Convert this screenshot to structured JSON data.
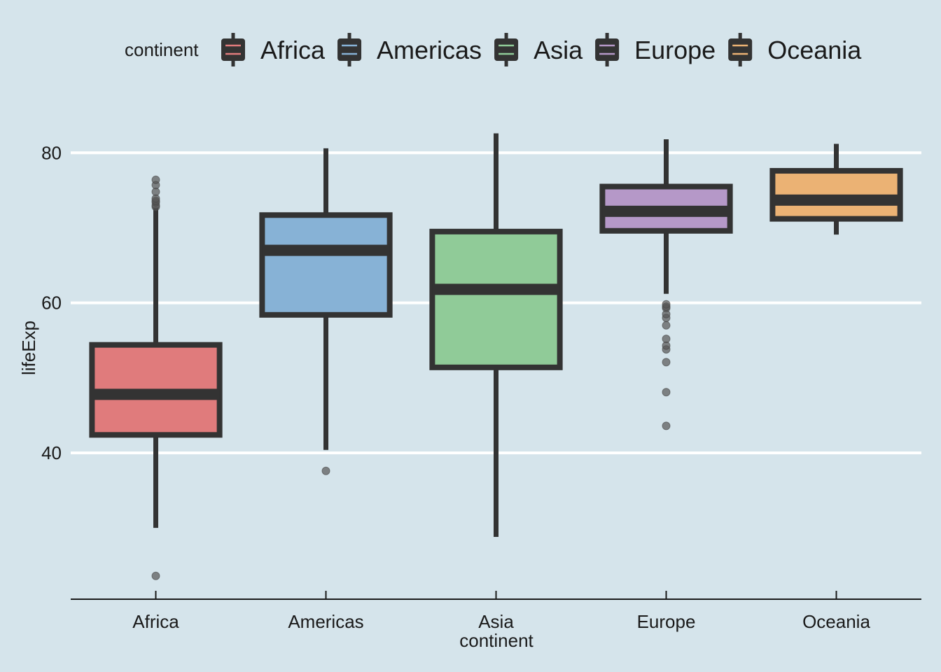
{
  "chart_data": {
    "type": "box",
    "xlabel": "continent",
    "ylabel": "lifeExp",
    "ylim": [
      20.5,
      86
    ],
    "yticks": [
      40,
      60,
      80
    ],
    "grid": "horizontal major lines",
    "legend": {
      "title": "continent",
      "placement": "top"
    },
    "categories": [
      "Africa",
      "Americas",
      "Asia",
      "Europe",
      "Oceania"
    ],
    "series": [
      {
        "name": "Africa",
        "color": "#e07b7c",
        "whisker_low": 30.0,
        "q1": 42.4,
        "median": 47.8,
        "q3": 54.4,
        "whisker_high": 72.7,
        "outliers": [
          23.6,
          72.8,
          73.0,
          73.4,
          73.6,
          73.9,
          74.8,
          75.7,
          76.4
        ]
      },
      {
        "name": "Americas",
        "color": "#87b2d6",
        "whisker_low": 40.4,
        "q1": 58.4,
        "median": 67.0,
        "q3": 71.7,
        "whisker_high": 80.6,
        "outliers": [
          37.6
        ]
      },
      {
        "name": "Asia",
        "color": "#90cb98",
        "whisker_low": 28.8,
        "q1": 51.4,
        "median": 61.8,
        "q3": 69.5,
        "whisker_high": 82.6,
        "outliers": []
      },
      {
        "name": "Europe",
        "color": "#b598c8",
        "whisker_low": 61.2,
        "q1": 69.6,
        "median": 72.2,
        "q3": 75.5,
        "whisker_high": 81.8,
        "outliers": [
          43.6,
          48.1,
          52.1,
          53.8,
          54.3,
          55.2,
          57.0,
          58.0,
          58.5,
          59.3,
          59.5,
          59.8
        ]
      },
      {
        "name": "Oceania",
        "color": "#ebb274",
        "whisker_low": 69.1,
        "q1": 71.2,
        "median": 73.7,
        "q3": 77.6,
        "whisker_high": 81.2,
        "outliers": []
      }
    ]
  }
}
